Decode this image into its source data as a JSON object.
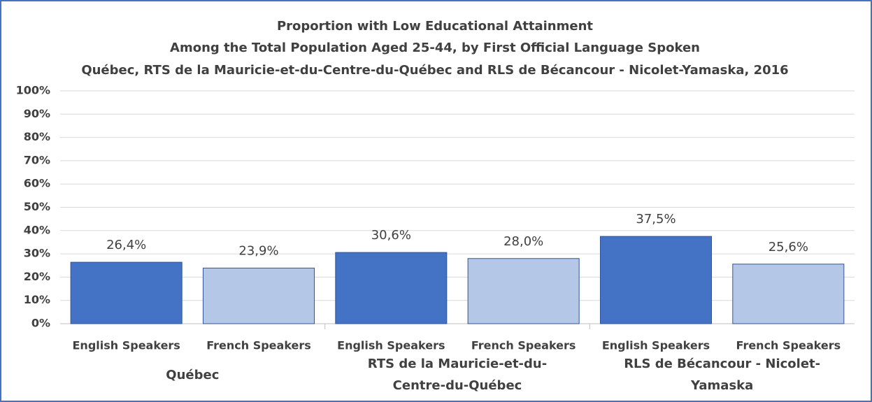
{
  "chart_data": {
    "type": "bar",
    "title": "Proportion with Low Educational Attainment",
    "subtitles": [
      "Among the Total Population Aged 25-44, by First Official Language Spoken",
      "Québec, RTS de la Mauricie-et-du-Centre-du-Québec  and RLS de Bécancour - Nicolet-Yamaska, 2016"
    ],
    "categories": [
      "English Speakers",
      "French Speakers",
      "English Speakers",
      "French Speakers",
      "English Speakers",
      "French Speakers"
    ],
    "groups": [
      "Québec",
      "RTS de la Mauricie-et-du-Centre-du-Québec",
      "RLS de Bécancour - Nicolet-Yamaska"
    ],
    "values": [
      26.4,
      23.9,
      30.6,
      28.0,
      37.5,
      25.6
    ],
    "value_labels": [
      "26,4%",
      "23,9%",
      "30,6%",
      "28,0%",
      "37,5%",
      "25,6%"
    ],
    "colors": [
      "#4472c4",
      "#b4c7e7",
      "#4472c4",
      "#b4c7e7",
      "#4472c4",
      "#b4c7e7"
    ],
    "ylim": [
      0,
      100
    ],
    "yticks": [
      {
        "value": 0,
        "label": "0%"
      },
      {
        "value": 10,
        "label": "10%"
      },
      {
        "value": 20,
        "label": "20%"
      },
      {
        "value": 30,
        "label": "30%"
      },
      {
        "value": 40,
        "label": "40%"
      },
      {
        "value": 50,
        "label": "50%"
      },
      {
        "value": 60,
        "label": "60%"
      },
      {
        "value": 70,
        "label": "70%"
      },
      {
        "value": 80,
        "label": "80%"
      },
      {
        "value": 90,
        "label": "90%"
      },
      {
        "value": 100,
        "label": "100%"
      }
    ],
    "grid": true
  }
}
